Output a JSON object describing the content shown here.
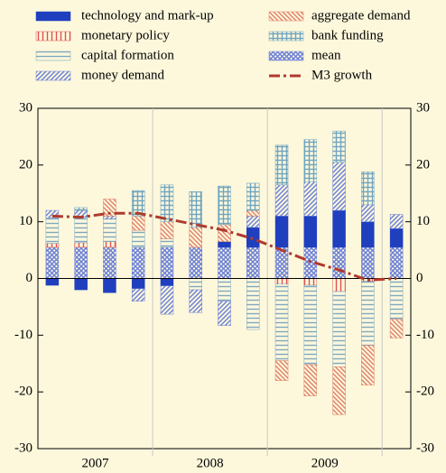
{
  "chart_data": {
    "type": "bar",
    "stacked": true,
    "categories": [
      null,
      null,
      null,
      null,
      null,
      null,
      null,
      null,
      null,
      null,
      null,
      null,
      null
    ],
    "year_labels": [
      "2007",
      "2008",
      "2009"
    ],
    "ylim": [
      -30,
      30
    ],
    "yticks": [
      -30,
      -20,
      -10,
      0,
      10,
      20,
      30
    ],
    "y2lim": [
      -30,
      30
    ],
    "y2ticks": [
      -30,
      -20,
      -10,
      0,
      10,
      20,
      30
    ],
    "series": [
      {
        "name": "mean",
        "color": "#6a7fd8",
        "hatch": "cross",
        "values": [
          5.5,
          5.5,
          5.5,
          5.5,
          5.5,
          5.5,
          5.5,
          5.5,
          5.5,
          5.5,
          5.5,
          5.5,
          5.5
        ]
      },
      {
        "name": "technology and mark-up",
        "color": "#1f3fbf",
        "hatch": "solid",
        "values": [
          -1.2,
          -2,
          -2.5,
          -1.8,
          -1.3,
          0,
          1,
          3.5,
          5.5,
          5.5,
          6.5,
          4.5,
          3.3
        ]
      },
      {
        "name": "monetary policy",
        "color": "#e05050",
        "hatch": "vertical",
        "values": [
          0.7,
          0.8,
          1,
          0,
          0,
          0,
          0,
          0,
          -1,
          -1.2,
          -2.3,
          -0.5,
          0
        ]
      },
      {
        "name": "capital formation",
        "color": "#7fa8c0",
        "hatch": "horizontal",
        "values": [
          4.5,
          4.5,
          4,
          3,
          1.5,
          -2,
          -4,
          -9,
          -13.5,
          -14,
          -13.3,
          -11.3,
          -7.2
        ]
      },
      {
        "name": "money demand",
        "color": "#6a7fd8",
        "hatch": "diagonal",
        "values": [
          1.3,
          1.2,
          0.5,
          -2.2,
          -5,
          -4,
          -4.3,
          2,
          5.5,
          6,
          8.5,
          3,
          2.5
        ]
      },
      {
        "name": "aggregate demand",
        "color": "#e0806a",
        "hatch": "diagonal-back",
        "values": [
          0,
          0,
          3,
          2.5,
          3,
          3.5,
          3,
          1,
          -3.5,
          -5.5,
          -8.4,
          -7,
          -3.3
        ]
      },
      {
        "name": "bank funding",
        "color": "#6fa4c0",
        "hatch": "grid",
        "values": [
          0,
          0.5,
          0,
          4.5,
          6.5,
          6.3,
          6.8,
          4.8,
          7,
          7.5,
          5.5,
          5.8,
          0
        ]
      },
      {
        "name": "M3 growth",
        "type": "line",
        "color": "#b03a2e",
        "values": [
          11,
          10.8,
          11.5,
          11.5,
          10.5,
          9.5,
          8.5,
          7,
          5,
          3,
          1.5,
          -0.3,
          0
        ]
      }
    ]
  }
}
